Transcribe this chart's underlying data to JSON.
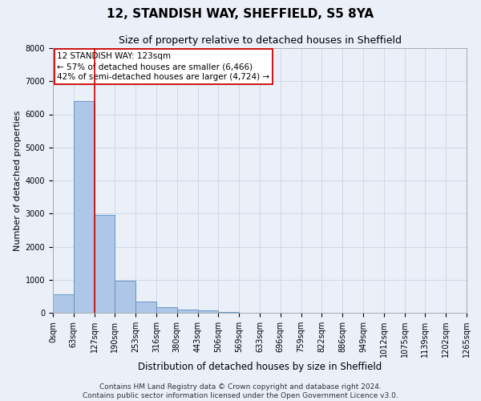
{
  "title": "12, STANDISH WAY, SHEFFIELD, S5 8YA",
  "subtitle": "Size of property relative to detached houses in Sheffield",
  "xlabel": "Distribution of detached houses by size in Sheffield",
  "ylabel": "Number of detached properties",
  "bin_labels": [
    "0sqm",
    "63sqm",
    "127sqm",
    "190sqm",
    "253sqm",
    "316sqm",
    "380sqm",
    "443sqm",
    "506sqm",
    "569sqm",
    "633sqm",
    "696sqm",
    "759sqm",
    "822sqm",
    "886sqm",
    "949sqm",
    "1012sqm",
    "1075sqm",
    "1139sqm",
    "1202sqm",
    "1265sqm"
  ],
  "bar_values": [
    550,
    6400,
    2950,
    975,
    340,
    160,
    100,
    70,
    20,
    8,
    5,
    3,
    2,
    1,
    1,
    0,
    0,
    0,
    0,
    0
  ],
  "bar_color": "#aec6e8",
  "bar_edge_color": "#5a8fc0",
  "grid_color": "#d0d8e8",
  "background_color": "#eaeff8",
  "property_line_x": 2,
  "property_line_color": "#cc0000",
  "annotation_text": "12 STANDISH WAY: 123sqm\n← 57% of detached houses are smaller (6,466)\n42% of semi-detached houses are larger (4,724) →",
  "annotation_box_color": "#ffffff",
  "annotation_box_edge": "#cc0000",
  "footer_text": "Contains HM Land Registry data © Crown copyright and database right 2024.\nContains public sector information licensed under the Open Government Licence v3.0.",
  "ylim": [
    0,
    8000
  ],
  "yticks": [
    0,
    1000,
    2000,
    3000,
    4000,
    5000,
    6000,
    7000,
    8000
  ],
  "title_fontsize": 11,
  "subtitle_fontsize": 9,
  "xlabel_fontsize": 8.5,
  "ylabel_fontsize": 8,
  "tick_fontsize": 7,
  "annotation_fontsize": 7.5,
  "footer_fontsize": 6.5
}
